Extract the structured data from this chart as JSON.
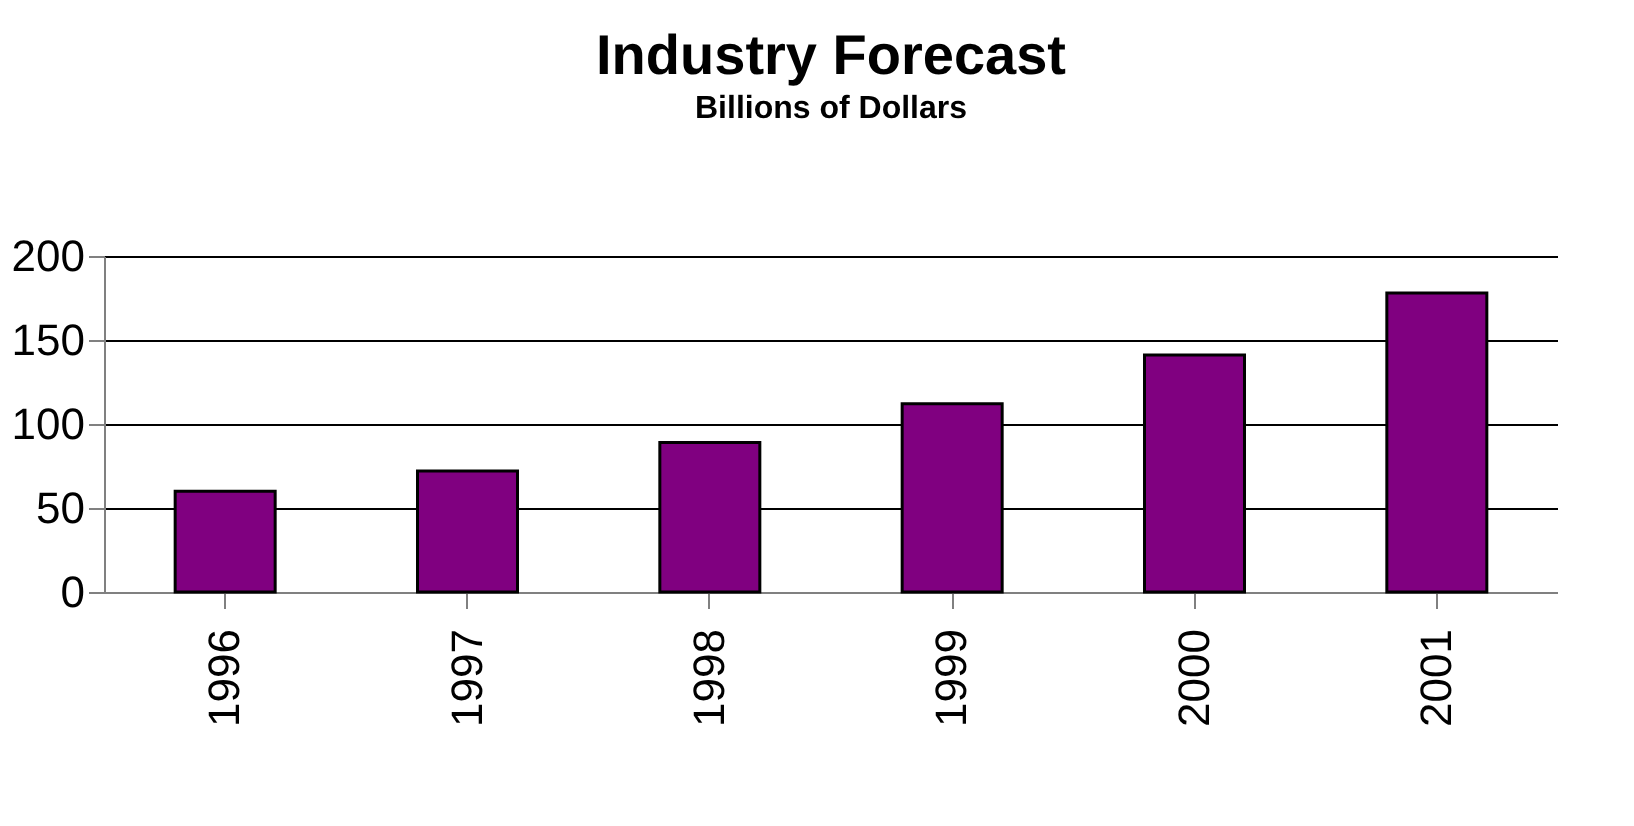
{
  "chart_data": {
    "type": "bar",
    "title": "Industry Forecast",
    "subtitle": "Billions of Dollars",
    "categories": [
      "1996",
      "1997",
      "1998",
      "1999",
      "2000",
      "2001"
    ],
    "values": [
      60,
      72,
      89,
      112,
      141,
      178
    ],
    "color": "#800080",
    "ylim": [
      0,
      200
    ],
    "yticks": [
      0,
      50,
      100,
      150,
      200
    ],
    "grid": "y"
  }
}
